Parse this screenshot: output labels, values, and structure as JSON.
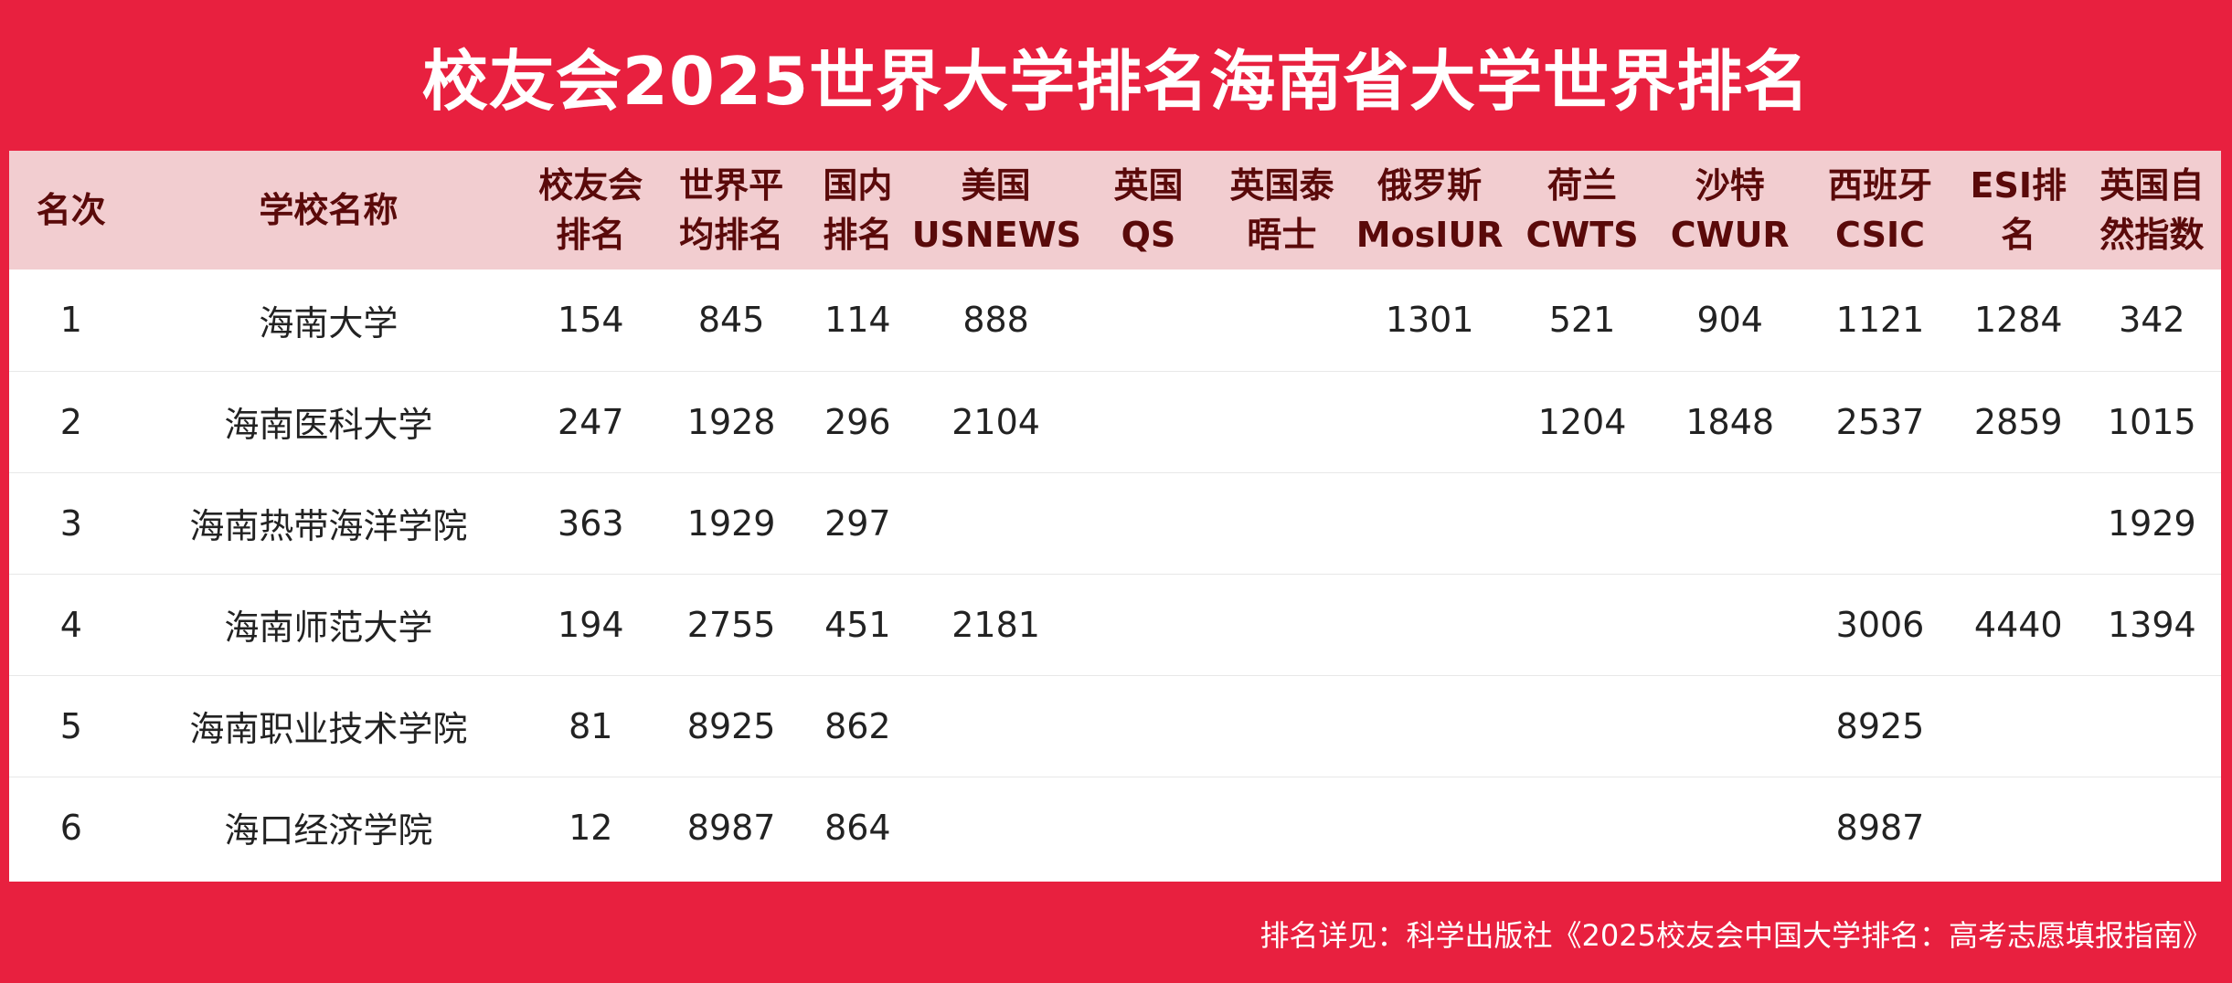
{
  "title": "校友会2025世界大学排名海南省大学世界排名",
  "headers": [
    [
      "名次"
    ],
    [
      "学校名称"
    ],
    [
      "校友会",
      "排名"
    ],
    [
      "世界平",
      "均排名"
    ],
    [
      "国内",
      "排名"
    ],
    [
      "美国",
      "USNEWS"
    ],
    [
      "英国",
      "QS"
    ],
    [
      "英国泰",
      "晤士"
    ],
    [
      "俄罗斯",
      "MosIUR"
    ],
    [
      "荷兰",
      "CWTS"
    ],
    [
      "沙特",
      "CWUR"
    ],
    [
      "西班牙",
      "CSIC"
    ],
    [
      "ESI排",
      "名"
    ],
    [
      "英国自",
      "然指数"
    ]
  ],
  "rows": [
    [
      "1",
      "海南大学",
      "154",
      "845",
      "114",
      "888",
      "",
      "",
      "1301",
      "521",
      "904",
      "1121",
      "1284",
      "342"
    ],
    [
      "2",
      "海南医科大学",
      "247",
      "1928",
      "296",
      "2104",
      "",
      "",
      "",
      "1204",
      "1848",
      "2537",
      "2859",
      "1015"
    ],
    [
      "3",
      "海南热带海洋学院",
      "363",
      "1929",
      "297",
      "",
      "",
      "",
      "",
      "",
      "",
      "",
      "",
      "1929"
    ],
    [
      "4",
      "海南师范大学",
      "194",
      "2755",
      "451",
      "2181",
      "",
      "",
      "",
      "",
      "",
      "3006",
      "4440",
      "1394"
    ],
    [
      "5",
      "海南职业技术学院",
      "81",
      "8925",
      "862",
      "",
      "",
      "",
      "",
      "",
      "",
      "8925",
      "",
      ""
    ],
    [
      "6",
      "海口经济学院",
      "12",
      "8987",
      "864",
      "",
      "",
      "",
      "",
      "",
      "",
      "8987",
      "",
      ""
    ]
  ],
  "footer": "排名详见：科学出版社《2025校友会中国大学排名：高考志愿填报指南》",
  "colors": {
    "background": "#E8203F",
    "header_row": "#F2CDD0",
    "header_text": "#5A0A0A",
    "body_text": "#222222"
  }
}
